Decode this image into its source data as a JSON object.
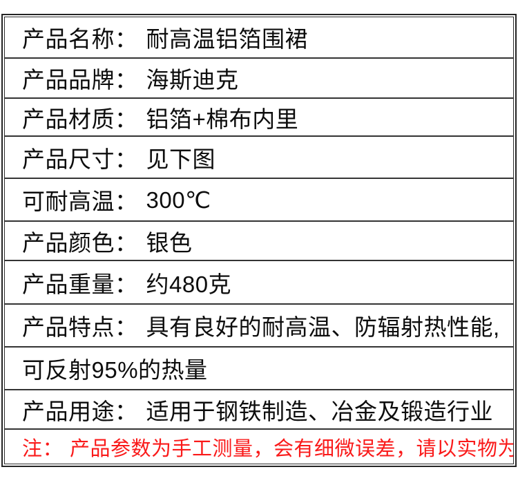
{
  "page": {
    "background_color": "#ffffff"
  },
  "table": {
    "colors": {
      "text": "#0d0d0d",
      "note_text": "#fa1a1a",
      "divider": "#333333",
      "frame": "#232323",
      "background": "#ffffff"
    },
    "rows": [
      {
        "label": "产品名称：",
        "value": "耐高温铝箔围裙"
      },
      {
        "label": "产品品牌：",
        "value": "海斯迪克"
      },
      {
        "label": "产品材质：",
        "value": "铝箔+棉布内里"
      },
      {
        "label": "产品尺寸：",
        "value": "见下图"
      },
      {
        "label": "可耐高温：",
        "value": "300℃"
      },
      {
        "label": "产品颜色：",
        "value": "银色"
      },
      {
        "label": "产品重量：",
        "value": "约480克"
      },
      {
        "label": "产品特点：",
        "value": "具有良好的耐高温、防辐射热性能,"
      },
      {
        "label": "",
        "value": "可反射95%的热量"
      },
      {
        "label": "产品用途：",
        "value": "适用于钢铁制造、冶金及锻造行业"
      },
      {
        "label": "注：",
        "value": "产品参数为手工测量，会有细微误差，请以实物为准"
      }
    ]
  }
}
